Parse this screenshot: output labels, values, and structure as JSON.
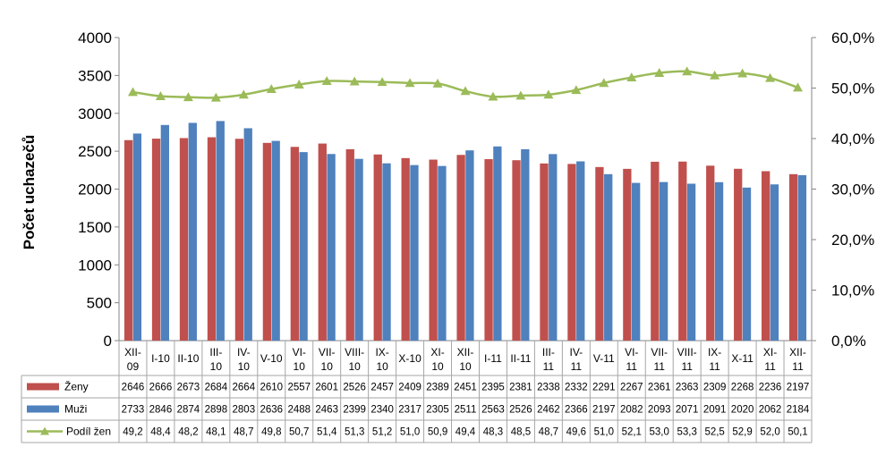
{
  "chart_data": {
    "type": "bar",
    "categories": [
      [
        "XII-",
        "09"
      ],
      [
        "I-10"
      ],
      [
        "II-10"
      ],
      [
        "III-",
        "10"
      ],
      [
        "IV-",
        "10"
      ],
      [
        "V-10"
      ],
      [
        "VI-",
        "10"
      ],
      [
        "VII-",
        "10"
      ],
      [
        "VIII-",
        "10"
      ],
      [
        "IX-",
        "10"
      ],
      [
        "X-10"
      ],
      [
        "XI-",
        "10"
      ],
      [
        "XII-",
        "10"
      ],
      [
        "I-11"
      ],
      [
        "II-11"
      ],
      [
        "III-",
        "11"
      ],
      [
        "IV-",
        "11"
      ],
      [
        "V-11"
      ],
      [
        "VI-",
        "11"
      ],
      [
        "VII-",
        "11"
      ],
      [
        "VIII-",
        "11"
      ],
      [
        "IX-",
        "11"
      ],
      [
        "X-11"
      ],
      [
        "XI-",
        "11"
      ],
      [
        "XII-",
        "11"
      ]
    ],
    "ylabel": "Počet uchazečů",
    "ylim": [
      0,
      4000
    ],
    "yticks": [
      "0",
      "500",
      "1000",
      "1500",
      "2000",
      "2500",
      "3000",
      "3500",
      "4000"
    ],
    "y2lim": [
      0,
      60
    ],
    "y2ticks": [
      "0,0%",
      "10,0%",
      "20,0%",
      "30,0%",
      "40,0%",
      "50,0%",
      "60,0%"
    ],
    "grid": false,
    "legend": "data-table-left",
    "series": [
      {
        "name": "Ženy",
        "type": "bar",
        "color": "#C0504D",
        "values": [
          2646,
          2666,
          2673,
          2684,
          2664,
          2610,
          2557,
          2601,
          2526,
          2457,
          2409,
          2389,
          2451,
          2395,
          2381,
          2338,
          2332,
          2291,
          2267,
          2361,
          2363,
          2309,
          2268,
          2236,
          2197
        ]
      },
      {
        "name": "Muži",
        "type": "bar",
        "color": "#4F81BD",
        "values": [
          2733,
          2846,
          2874,
          2898,
          2803,
          2636,
          2488,
          2463,
          2399,
          2340,
          2317,
          2305,
          2511,
          2563,
          2526,
          2462,
          2366,
          2197,
          2082,
          2093,
          2071,
          2091,
          2020,
          2062,
          2184
        ]
      },
      {
        "name": "Podíl žen",
        "type": "line",
        "axis": "secondary",
        "color": "#9BBB59",
        "values": [
          49.2,
          48.4,
          48.2,
          48.1,
          48.7,
          49.8,
          50.7,
          51.4,
          51.3,
          51.2,
          51.0,
          50.9,
          49.4,
          48.3,
          48.5,
          48.7,
          49.6,
          51.0,
          52.1,
          53.0,
          53.3,
          52.5,
          52.9,
          52.0,
          50.1
        ],
        "labels": [
          "49,2",
          "48,4",
          "48,2",
          "48,1",
          "48,7",
          "49,8",
          "50,7",
          "51,4",
          "51,3",
          "51,2",
          "51,0",
          "50,9",
          "49,4",
          "48,3",
          "48,5",
          "48,7",
          "49,6",
          "51,0",
          "52,1",
          "53,0",
          "53,3",
          "52,5",
          "52,9",
          "52,0",
          "50,1"
        ]
      }
    ]
  }
}
